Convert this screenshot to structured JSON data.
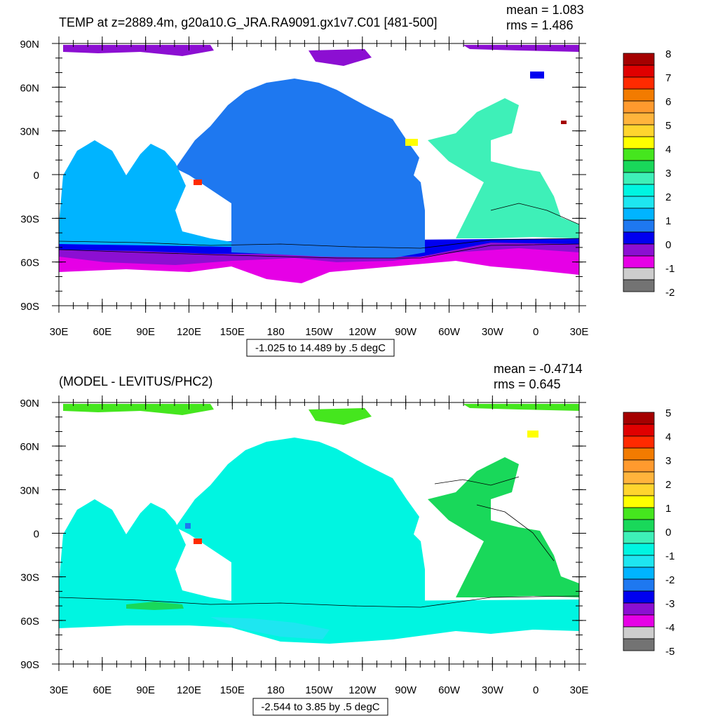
{
  "panels": [
    {
      "title": "TEMP at z=2889.4m, g20a10.G_JRA.RA9091.gx1v7.C01 [481-500]",
      "mean": "mean = 1.083",
      "rms": "rms = 1.486",
      "range_label": "-1.025 to 14.489 by .5 degC",
      "colorbar_labels": [
        "8",
        "7",
        "6",
        "5",
        "4",
        "3",
        "2",
        "1",
        "0",
        "-1",
        "-2"
      ]
    },
    {
      "title": "(MODEL - LEVITUS/PHC2)",
      "mean": "mean = -0.4714",
      "rms": "rms = 0.645",
      "range_label": "-2.544 to 3.85 by .5 degC",
      "colorbar_labels": [
        "5",
        "4",
        "3",
        "2",
        "1",
        "0",
        "-1",
        "-2",
        "-3",
        "-4",
        "-5"
      ]
    }
  ],
  "lat_labels": [
    "90N",
    "60N",
    "30N",
    "0",
    "30S",
    "60S",
    "90S"
  ],
  "lon_labels": [
    "30E",
    "60E",
    "90E",
    "120E",
    "150E",
    "180",
    "150W",
    "120W",
    "90W",
    "60W",
    "30W",
    "0",
    "30E"
  ],
  "colors": {
    "colorbar": [
      "#a50000",
      "#e00000",
      "#ff2a00",
      "#f27b00",
      "#ff9a2e",
      "#ffb43c",
      "#ffd52e",
      "#ffff00",
      "#45e61e",
      "#19d85a",
      "#3ef0b8",
      "#00f5e1",
      "#1ee6f0",
      "#00b4ff",
      "#1e78f0",
      "#0000f0",
      "#8c0fd2",
      "#e600e6",
      "#cdcdcd",
      "#737373"
    ]
  }
}
